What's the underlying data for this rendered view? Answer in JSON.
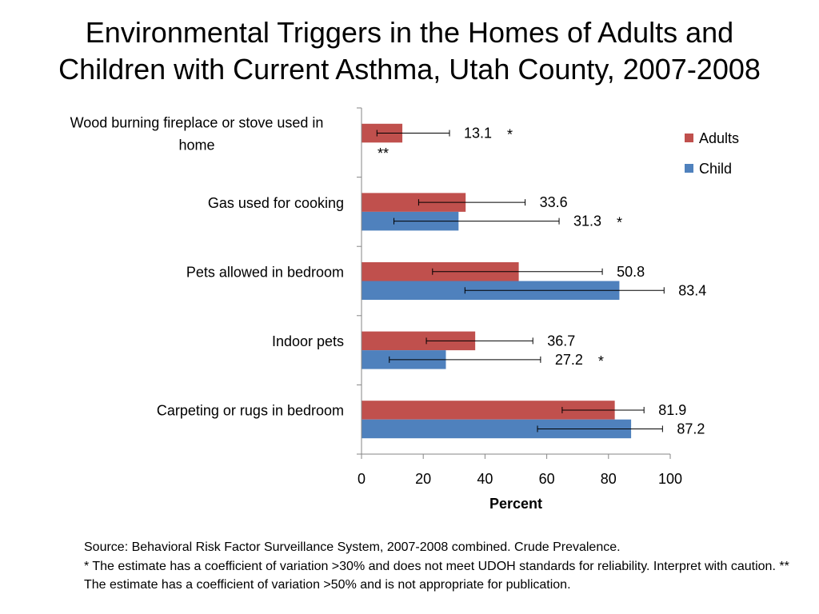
{
  "title_lines": [
    "Environmental Triggers in the Homes of Adults and",
    "Children with Current Asthma, Utah County, 2007-2008"
  ],
  "colors": {
    "adults": "#c0504d",
    "child": "#4f81bd"
  },
  "chart_data": {
    "type": "bar",
    "orientation": "horizontal",
    "xlabel": "Percent",
    "xlim": [
      0,
      100
    ],
    "xticks": [
      "0",
      "20",
      "40",
      "60",
      "80",
      "100"
    ],
    "legend_position": "top-right",
    "categories": [
      {
        "lines": [
          "Wood burning fireplace or stove used in",
          "home"
        ]
      },
      {
        "lines": [
          "Gas used for cooking"
        ]
      },
      {
        "lines": [
          "Pets allowed in bedroom"
        ]
      },
      {
        "lines": [
          "Indoor pets"
        ]
      },
      {
        "lines": [
          "Carpeting or rugs in bedroom"
        ]
      }
    ],
    "series": [
      {
        "name": "Adults",
        "values": [
          13.1,
          33.6,
          50.8,
          36.7,
          81.9
        ],
        "labels": [
          "13.1",
          "33.6",
          "50.8",
          "36.7",
          "81.9"
        ],
        "flags": [
          "*",
          "",
          "",
          "",
          ""
        ],
        "ci": [
          [
            5,
            28.5
          ],
          [
            18.5,
            53
          ],
          [
            23,
            78
          ],
          [
            21,
            55.5
          ],
          [
            65,
            91.5
          ]
        ]
      },
      {
        "name": "Child",
        "values": [
          null,
          31.3,
          83.4,
          27.2,
          87.2
        ],
        "labels": [
          "",
          "31.3",
          "83.4",
          "27.2",
          "87.2"
        ],
        "flags": [
          "**",
          "*",
          "",
          "*",
          ""
        ],
        "ci": [
          null,
          [
            10.5,
            64
          ],
          [
            33.5,
            98
          ],
          [
            9,
            58
          ],
          [
            57,
            97.5
          ]
        ]
      }
    ]
  },
  "footnotes": {
    "source": "Source: Behavioral Risk Factor Surveillance System, 2007-2008 combined. Crude Prevalence.",
    "note": "* The estimate has a coefficient of variation >30% and does not meet UDOH standards for reliability. Interpret with caution. ** The estimate has a coefficient of variation >50% and is not appropriate for publication."
  }
}
